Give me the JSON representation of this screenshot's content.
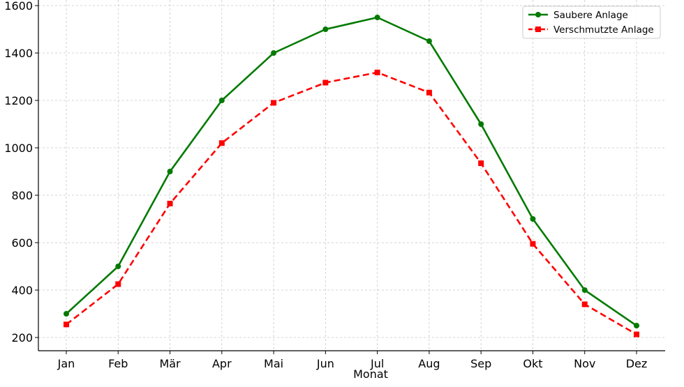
{
  "chart_data": {
    "type": "line",
    "xlabel": "Monat",
    "ylabel": "",
    "categories": [
      "Jan",
      "Feb",
      "Mär",
      "Apr",
      "Mai",
      "Jun",
      "Jul",
      "Aug",
      "Sep",
      "Okt",
      "Nov",
      "Dez"
    ],
    "ylim": [
      170,
      1605
    ],
    "yticks": [
      200,
      400,
      600,
      800,
      1000,
      1200,
      1400,
      1600
    ],
    "grid": true,
    "legend_position": "top-right",
    "series": [
      {
        "name": "Saubere Anlage",
        "color": "#007a00",
        "line_style": "solid",
        "marker": "circle",
        "values": [
          300,
          500,
          900,
          1200,
          1400,
          1500,
          1550,
          1450,
          1100,
          700,
          400,
          250
        ]
      },
      {
        "name": "Verschmutzte Anlage",
        "color": "#ff0000",
        "line_style": "dashed",
        "marker": "square",
        "values": [
          255,
          425,
          765,
          1020,
          1190,
          1275,
          1318,
          1233,
          935,
          595,
          340,
          213
        ]
      }
    ]
  }
}
